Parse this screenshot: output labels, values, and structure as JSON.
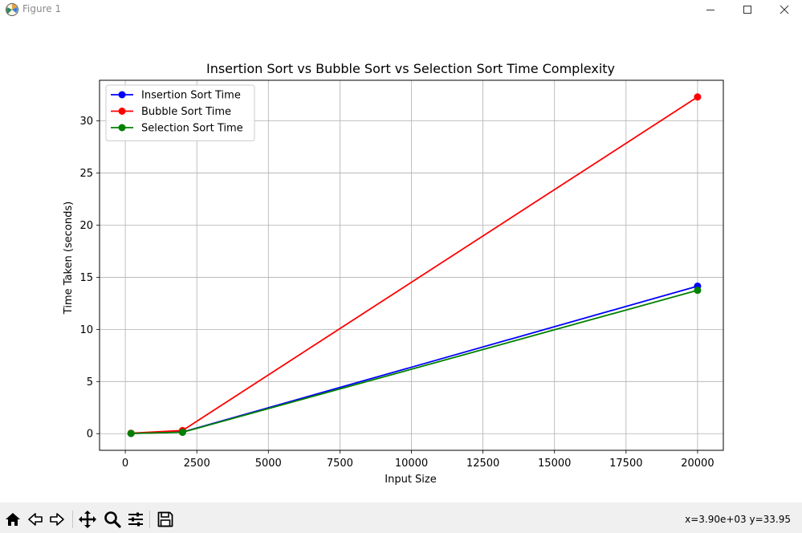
{
  "window": {
    "title": "Figure 1"
  },
  "toolbar": {
    "buttons": [
      "home-icon",
      "back-icon",
      "forward-icon",
      "pan-icon",
      "zoom-icon",
      "configure-subplots-icon",
      "save-icon"
    ],
    "coords_text": "x=3.90e+03 y=33.95"
  },
  "chart_data": {
    "type": "line",
    "title": "Insertion Sort vs Bubble Sort vs Selection Sort Time Complexity",
    "xlabel": "Input Size",
    "ylabel": "Time Taken (seconds)",
    "xlim": [
      -900,
      20900
    ],
    "ylim": [
      -1.6,
      33.9
    ],
    "xticks": [
      0,
      2500,
      5000,
      7500,
      10000,
      12500,
      15000,
      17500,
      20000
    ],
    "xtick_labels": [
      "0",
      "2500",
      "5000",
      "7500",
      "10000",
      "12500",
      "15000",
      "17500",
      "20000"
    ],
    "yticks": [
      0,
      5,
      10,
      15,
      20,
      25,
      30
    ],
    "ytick_labels": [
      "0",
      "5",
      "10",
      "15",
      "20",
      "25",
      "30"
    ],
    "grid": true,
    "legend_position": "upper-left",
    "x": [
      200,
      2000,
      20000
    ],
    "series": [
      {
        "name": "Insertion Sort Time",
        "color": "#0000ff",
        "values": [
          0.02,
          0.15,
          14.15
        ]
      },
      {
        "name": "Bubble Sort Time",
        "color": "#ff0000",
        "values": [
          0.04,
          0.3,
          32.3
        ]
      },
      {
        "name": "Selection Sort Time",
        "color": "#008000",
        "values": [
          0.02,
          0.13,
          13.75
        ]
      }
    ]
  }
}
